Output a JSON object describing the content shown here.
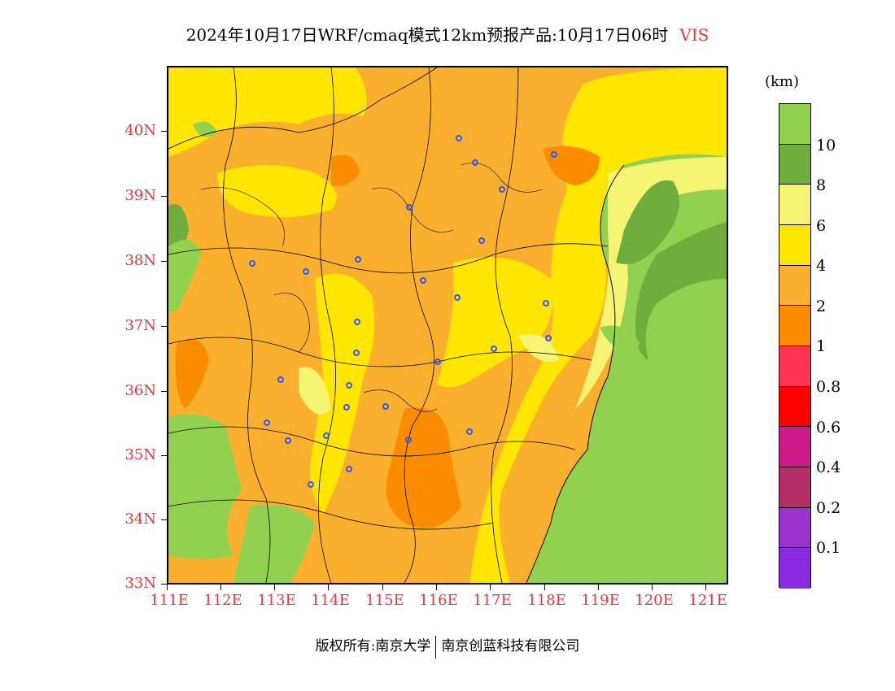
{
  "title": {
    "main": "2024年10月17日WRF/cmaq模式12km预报产品:10月17日06时",
    "variable": "VIS"
  },
  "map": {
    "latitude_labels": [
      "40N",
      "39N",
      "38N",
      "37N",
      "36N",
      "35N",
      "34N",
      "33N"
    ],
    "longitude_labels": [
      "111E",
      "112E",
      "113E",
      "114E",
      "115E",
      "116E",
      "117E",
      "118E",
      "119E",
      "120E",
      "121E"
    ],
    "colors": {
      "over10": "#92d050",
      "8to10": "#6fae3c",
      "6to8": "#f5f573",
      "4to6": "#ffe600",
      "2to4": "#fbb02d",
      "1to2": "#fb8c00",
      "boundary": "#000000",
      "city_marker": "#3355ff"
    }
  },
  "legend": {
    "unit": "(km)",
    "labels": [
      "10",
      "8",
      "6",
      "4",
      "2",
      "1",
      "0.8",
      "0.6",
      "0.4",
      "0.2",
      "0.1"
    ],
    "colors": [
      "#92d050",
      "#6fae3c",
      "#f5f573",
      "#ffe600",
      "#fbb02d",
      "#fb8c00",
      "#ff3355",
      "#ff0000",
      "#cc1a88",
      "#b32d66",
      "#9933cc",
      "#8a2be2"
    ]
  },
  "footer": {
    "copyright": "版权所有:南京大学",
    "company": "南京创蓝科技有限公司"
  }
}
